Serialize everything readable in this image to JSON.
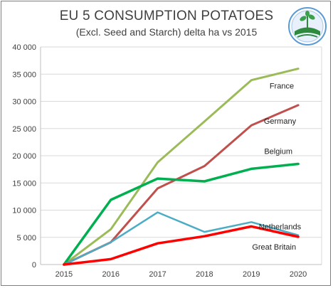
{
  "chart_data": {
    "type": "line",
    "title": "EU 5 CONSUMPTION POTATOES",
    "subtitle": "(Excl. Seed and Starch)  delta ha vs 2015",
    "x": [
      "2015",
      "2016",
      "2017",
      "2018",
      "2019",
      "2020"
    ],
    "ylim": [
      0,
      40000
    ],
    "yticks": [
      "0",
      "5 000",
      "10 000",
      "15 000",
      "20 000",
      "25 000",
      "30 000",
      "35 000",
      "40 000"
    ],
    "grid": true,
    "series": [
      {
        "name": "France",
        "color": "#9bbb59",
        "values": [
          0,
          6500,
          18800,
          26300,
          33900,
          36000
        ]
      },
      {
        "name": "Germany",
        "color": "#c0504d",
        "values": [
          0,
          4100,
          14000,
          18100,
          25600,
          29300
        ]
      },
      {
        "name": "Belgium",
        "color": "#00b050",
        "values": [
          0,
          11900,
          15800,
          15300,
          17600,
          18500
        ]
      },
      {
        "name": "Netherlands",
        "color": "#4bacc6",
        "values": [
          0,
          4100,
          9600,
          6000,
          7800,
          5400
        ]
      },
      {
        "name": "Great Britain",
        "color": "#ff0000",
        "values": [
          0,
          1000,
          3900,
          5200,
          7000,
          5100
        ]
      }
    ]
  },
  "logo": {
    "name": "potato-organisation-logo"
  }
}
